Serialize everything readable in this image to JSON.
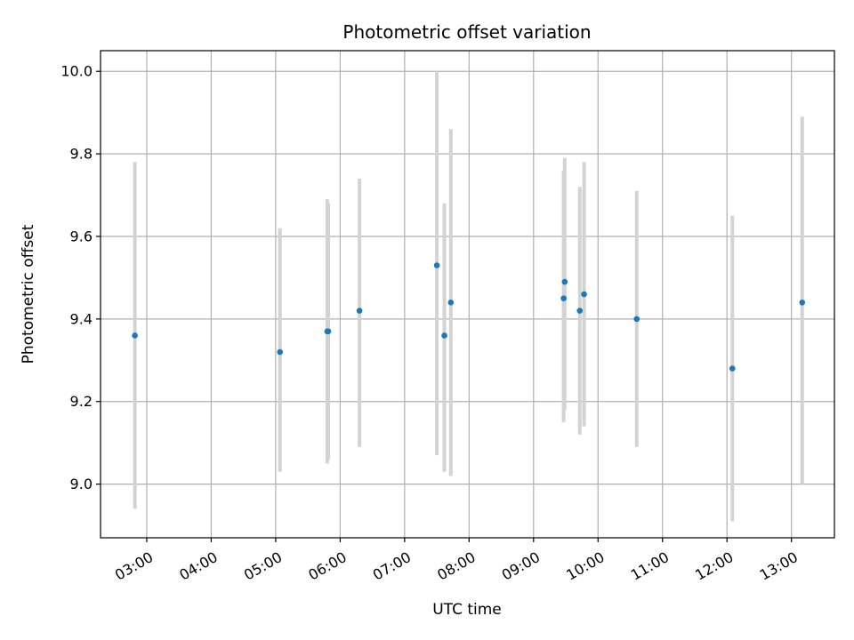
{
  "chart_data": {
    "type": "scatter",
    "title": "Photometric offset variation",
    "xlabel": "UTC time",
    "ylabel": "Photometric offset",
    "x_ticks": [
      "03:00",
      "04:00",
      "05:00",
      "06:00",
      "07:00",
      "08:00",
      "09:00",
      "10:00",
      "11:00",
      "12:00",
      "13:00"
    ],
    "y_ticks": [
      "9.0",
      "9.2",
      "9.4",
      "9.6",
      "9.8",
      "10.0"
    ],
    "xlim": [
      "02:17",
      "13:40"
    ],
    "ylim": [
      8.87,
      10.05
    ],
    "grid": true,
    "legend": "none",
    "colors": {
      "marker": "#1f77b4",
      "errorbar": "#d3d3d3",
      "grid": "#b0b0b0"
    },
    "points": [
      {
        "x": "02:49",
        "y": 9.36,
        "y_low": 8.94,
        "y_high": 9.78
      },
      {
        "x": "05:04",
        "y": 9.32,
        "y_low": 9.03,
        "y_high": 9.62
      },
      {
        "x": "05:48",
        "y": 9.37,
        "y_low": 9.05,
        "y_high": 9.69
      },
      {
        "x": "05:49",
        "y": 9.37,
        "y_low": 9.06,
        "y_high": 9.68
      },
      {
        "x": "06:18",
        "y": 9.42,
        "y_low": 9.09,
        "y_high": 9.74
      },
      {
        "x": "07:30",
        "y": 9.53,
        "y_low": 9.07,
        "y_high": 10.0
      },
      {
        "x": "07:37",
        "y": 9.36,
        "y_low": 9.03,
        "y_high": 9.68
      },
      {
        "x": "07:43",
        "y": 9.44,
        "y_low": 9.02,
        "y_high": 9.86
      },
      {
        "x": "09:28",
        "y": 9.45,
        "y_low": 9.15,
        "y_high": 9.76
      },
      {
        "x": "09:29",
        "y": 9.49,
        "y_low": 9.18,
        "y_high": 9.79
      },
      {
        "x": "09:43",
        "y": 9.42,
        "y_low": 9.12,
        "y_high": 9.72
      },
      {
        "x": "09:47",
        "y": 9.46,
        "y_low": 9.14,
        "y_high": 9.78
      },
      {
        "x": "10:36",
        "y": 9.4,
        "y_low": 9.09,
        "y_high": 9.71
      },
      {
        "x": "12:05",
        "y": 9.28,
        "y_low": 8.91,
        "y_high": 9.65
      },
      {
        "x": "13:10",
        "y": 9.44,
        "y_low": 9.0,
        "y_high": 9.89
      }
    ]
  }
}
